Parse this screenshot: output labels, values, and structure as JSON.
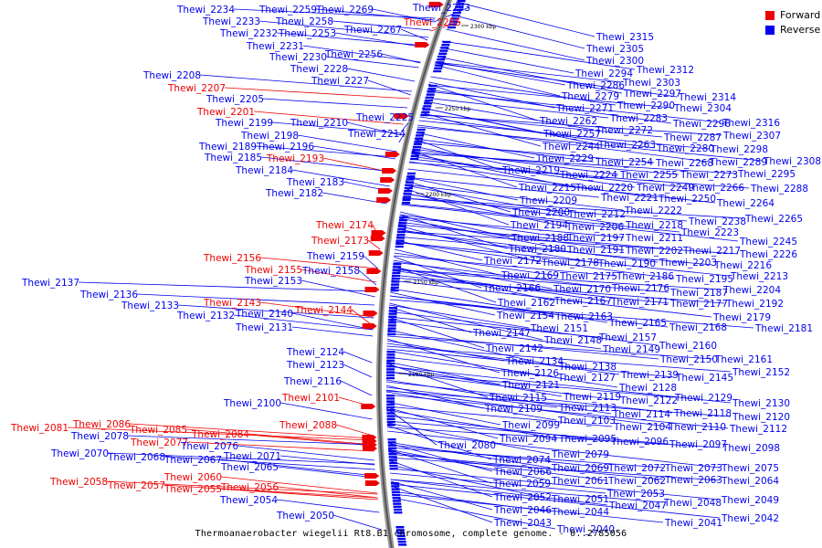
{
  "caption": "Thermoanaerobacter wiegelii Rt8.B1 chromosome, complete genome. - 0..2785056",
  "legend": [
    {
      "label": "Forward",
      "color": "#ee0000"
    },
    {
      "label": "Reverse",
      "color": "#0000ee"
    }
  ],
  "scale_ticks": [
    "2300 kbp",
    "2250 kbp",
    "2200 kbp",
    "2150 kbp",
    "2100 kbp"
  ],
  "forward_genes": [
    "Thewi_2285",
    "Thewi_2207",
    "Thewi_2201",
    "Thewi_2193",
    "Thewi_2174",
    "Thewi_2173",
    "Thewi_2156",
    "Thewi_2155",
    "Thewi_2143",
    "Thewi_2144",
    "Thewi_2101",
    "Thewi_2088",
    "Thewi_2081",
    "Thewi_2086",
    "Thewi_2085",
    "Thewi_2077",
    "Thewi_2084",
    "Thewi_2058",
    "Thewi_2057",
    "Thewi_2060",
    "Thewi_2055",
    "Thewi_2056"
  ],
  "reverse_genes_left": [
    "Thewi_2234",
    "Thewi_2259",
    "Thewi_2269",
    "Thewi_2293",
    "Thewi_2233",
    "Thewi_2258",
    "Thewi_2267",
    "Thewi_2232",
    "Thewi_2253",
    "Thewi_2231",
    "Thewi_2256",
    "Thewi_2230",
    "Thewi_2228",
    "Thewi_2227",
    "Thewi_2208",
    "Thewi_2205",
    "Thewi_2199",
    "Thewi_2210",
    "Thewi_2225",
    "Thewi_2198",
    "Thewi_2214",
    "Thewi_2189",
    "Thewi_2196",
    "Thewi_2185",
    "Thewi_2184",
    "Thewi_2183",
    "Thewi_2182",
    "Thewi_2159",
    "Thewi_2158",
    "Thewi_2153",
    "Thewi_2137",
    "Thewi_2136",
    "Thewi_2133",
    "Thewi_2132",
    "Thewi_2140",
    "Thewi_2131",
    "Thewi_2124",
    "Thewi_2123",
    "Thewi_2116",
    "Thewi_2100",
    "Thewi_2078",
    "Thewi_2070",
    "Thewi_2068",
    "Thewi_2076",
    "Thewi_2067",
    "Thewi_2071",
    "Thewi_2065",
    "Thewi_2054",
    "Thewi_2050"
  ],
  "reverse_genes_right": [
    "Thewi_2315",
    "Thewi_2305",
    "Thewi_2300",
    "Thewi_2312",
    "Thewi_2294",
    "Thewi_2286",
    "Thewi_2303",
    "Thewi_2297",
    "Thewi_2314",
    "Thewi_2279",
    "Thewi_2290",
    "Thewi_2271",
    "Thewi_2304",
    "Thewi_2283",
    "Thewi_2262",
    "Thewi_2296",
    "Thewi_2316",
    "Thewi_2272",
    "Thewi_2257",
    "Thewi_2287",
    "Thewi_2307",
    "Thewi_2263",
    "Thewi_2244",
    "Thewi_2280",
    "Thewi_2298",
    "Thewi_2229",
    "Thewi_2254",
    "Thewi_2268",
    "Thewi_2289",
    "Thewi_2308",
    "Thewi_2219",
    "Thewi_2224",
    "Thewi_2255",
    "Thewi_2273",
    "Thewi_2295",
    "Thewi_2215",
    "Thewi_2220",
    "Thewi_2249",
    "Thewi_2266",
    "Thewi_2288",
    "Thewi_2209",
    "Thewi_2221",
    "Thewi_2250",
    "Thewi_2264",
    "Thewi_2200",
    "Thewi_2212",
    "Thewi_2222",
    "Thewi_2238",
    "Thewi_2265",
    "Thewi_2194",
    "Thewi_2206",
    "Thewi_2218",
    "Thewi_2223",
    "Thewi_2188",
    "Thewi_2197",
    "Thewi_2211",
    "Thewi_2245",
    "Thewi_2180",
    "Thewi_2191",
    "Thewi_2202",
    "Thewi_2217",
    "Thewi_2226",
    "Thewi_2172",
    "Thewi_2178",
    "Thewi_2190",
    "Thewi_2203",
    "Thewi_2216",
    "Thewi_2169",
    "Thewi_2175",
    "Thewi_2186",
    "Thewi_2195",
    "Thewi_2213",
    "Thewi_2166",
    "Thewi_2170",
    "Thewi_2176",
    "Thewi_2187",
    "Thewi_2204",
    "Thewi_2162",
    "Thewi_2167",
    "Thewi_2171",
    "Thewi_2177",
    "Thewi_2192",
    "Thewi_2154",
    "Thewi_2163",
    "Thewi_2179",
    "Thewi_2165",
    "Thewi_2168",
    "Thewi_2181",
    "Thewi_2147",
    "Thewi_2151",
    "Thewi_2157",
    "Thewi_2148",
    "Thewi_2160",
    "Thewi_2142",
    "Thewi_2149",
    "Thewi_2150",
    "Thewi_2161",
    "Thewi_2134",
    "Thewi_2138",
    "Thewi_2126",
    "Thewi_2139",
    "Thewi_2145",
    "Thewi_2152",
    "Thewi_2121",
    "Thewi_2127",
    "Thewi_2128",
    "Thewi_2115",
    "Thewi_2119",
    "Thewi_2122",
    "Thewi_2129",
    "Thewi_2109",
    "Thewi_2113",
    "Thewi_2130",
    "Thewi_2114",
    "Thewi_2118",
    "Thewi_2103",
    "Thewi_2120",
    "Thewi_2099",
    "Thewi_2104",
    "Thewi_2110",
    "Thewi_2112",
    "Thewi_2094",
    "Thewi_2095",
    "Thewi_2096",
    "Thewi_2097",
    "Thewi_2098",
    "Thewi_2080",
    "Thewi_2074",
    "Thewi_2079",
    "Thewi_2066",
    "Thewi_2069",
    "Thewi_2072",
    "Thewi_2073",
    "Thewi_2075",
    "Thewi_2059",
    "Thewi_2061",
    "Thewi_2062",
    "Thewi_2063",
    "Thewi_2064",
    "Thewi_2053",
    "Thewi_2052",
    "Thewi_2051",
    "Thewi_2049",
    "Thewi_2046",
    "Thewi_2047",
    "Thewi_2048",
    "Thewi_2044",
    "Thewi_2043",
    "Thewi_2042",
    "Thewi_2040",
    "Thewi_2041"
  ]
}
